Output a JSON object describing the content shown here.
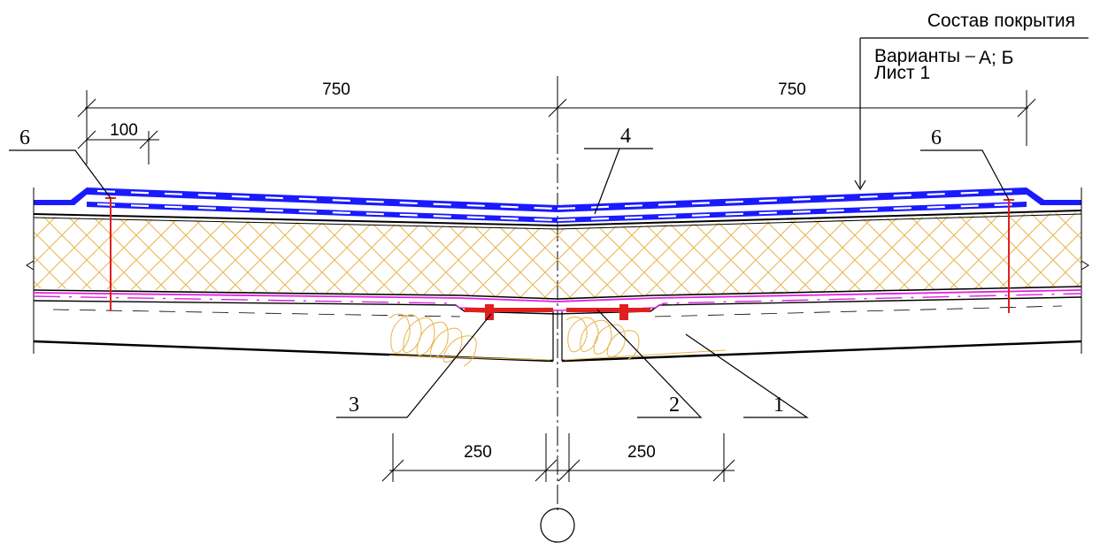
{
  "title_block": {
    "title": "Состав покрытия",
    "variants_label": "Варианты",
    "variants_value": "А; Б",
    "sheet": "Лист 1"
  },
  "dimensions": {
    "left_span": "750",
    "right_span": "750",
    "edge_offset": "100",
    "bottom_left": "250",
    "bottom_right": "250"
  },
  "callouts": {
    "item_1": "1",
    "item_2": "2",
    "item_3": "3",
    "item_4": "4",
    "item_6_left": "6",
    "item_6_right": "6"
  },
  "colors": {
    "membrane": "#1a1aff",
    "insulation": "#e8b44a",
    "fastener": "#e02020",
    "vapor_barrier": "#e020e0",
    "line": "#000000"
  }
}
